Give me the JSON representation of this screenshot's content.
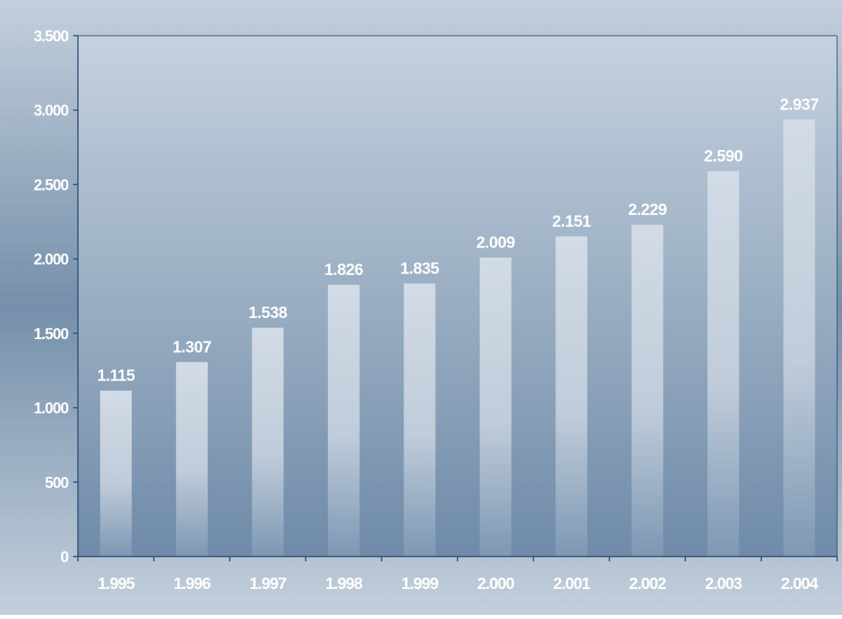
{
  "chart_data": {
    "type": "bar",
    "title": "",
    "xlabel": "",
    "ylabel": "",
    "categories": [
      "1.995",
      "1.996",
      "1.997",
      "1.998",
      "1.999",
      "2.000",
      "2.001",
      "2.002",
      "2.003",
      "2.004"
    ],
    "values": [
      1115,
      1307,
      1538,
      1826,
      1835,
      2009,
      2151,
      2229,
      2590,
      2937
    ],
    "data_labels": [
      "1.115",
      "1.307",
      "1.538",
      "1.826",
      "1.835",
      "2.009",
      "2.151",
      "2.229",
      "2.590",
      "2.937"
    ],
    "ylim": [
      0,
      3500
    ],
    "yticks": [
      0,
      500,
      1000,
      1500,
      2000,
      2500,
      3000,
      3500
    ],
    "ytick_labels": [
      "0",
      "500",
      "1.000",
      "1.500",
      "2.000",
      "2.500",
      "3.000",
      "3.500"
    ],
    "grid": false,
    "legend": "none",
    "colors": {
      "background_edge": "#c3cfdc",
      "background_mid": "#7590ab",
      "plot_top": "#c5d1de",
      "plot_bottom": "#6f8ba8",
      "axis": "#2f4f74",
      "bar_top": "#d2dbe6",
      "bar_bottom": "#7d98b4",
      "text": "#ffffff"
    }
  }
}
